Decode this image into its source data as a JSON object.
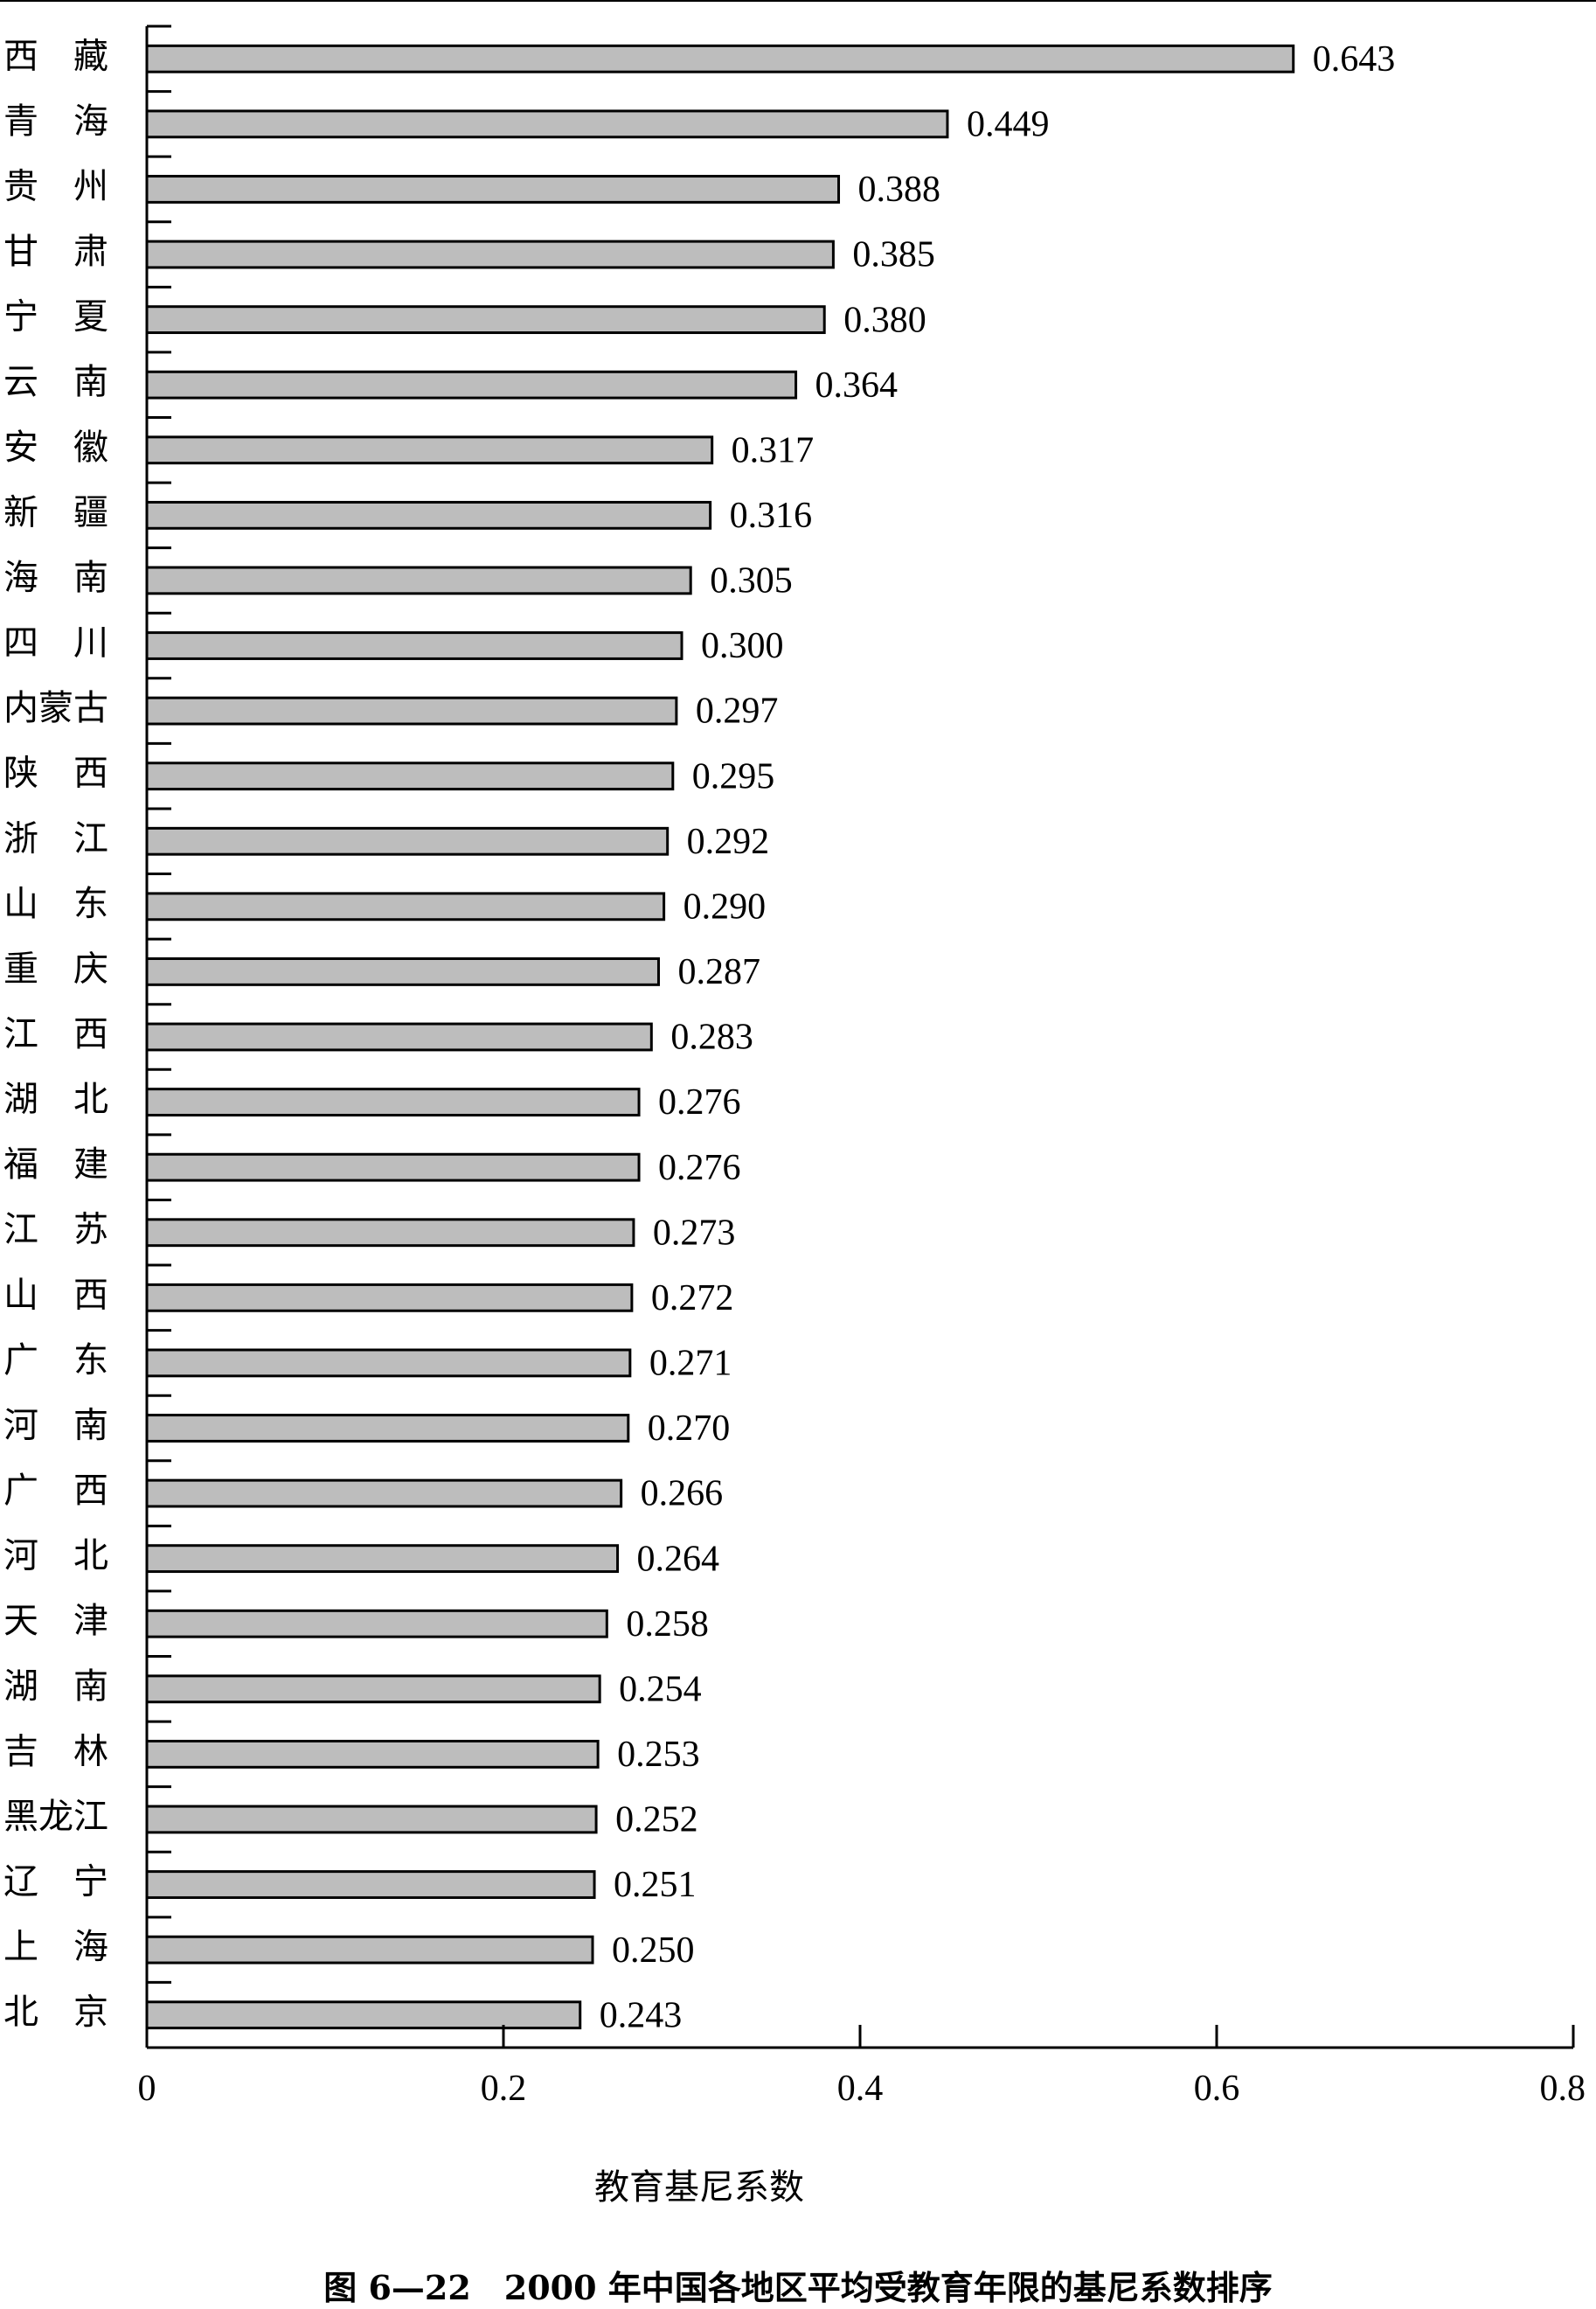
{
  "chart_data": {
    "type": "bar",
    "orientation": "horizontal",
    "categories": [
      "西　藏",
      "青　海",
      "贵　州",
      "甘　肃",
      "宁　夏",
      "云　南",
      "安　徽",
      "新　疆",
      "海　南",
      "四　川",
      "内蒙古",
      "陕　西",
      "浙　江",
      "山　东",
      "重　庆",
      "江　西",
      "湖　北",
      "福　建",
      "江　苏",
      "山　西",
      "广　东",
      "河　南",
      "广　西",
      "河　北",
      "天　津",
      "湖　南",
      "吉　林",
      "黑龙江",
      "辽　宁",
      "上　海",
      "北　京"
    ],
    "values": [
      0.643,
      0.449,
      0.388,
      0.385,
      0.38,
      0.364,
      0.317,
      0.316,
      0.305,
      0.3,
      0.297,
      0.295,
      0.292,
      0.29,
      0.287,
      0.283,
      0.276,
      0.276,
      0.273,
      0.272,
      0.271,
      0.27,
      0.266,
      0.264,
      0.258,
      0.254,
      0.253,
      0.252,
      0.251,
      0.25,
      0.243
    ],
    "value_labels": [
      "0.643",
      "0.449",
      "0.388",
      "0.385",
      "0.380",
      "0.364",
      "0.317",
      "0.316",
      "0.305",
      "0.300",
      "0.297",
      "0.295",
      "0.292",
      "0.290",
      "0.287",
      "0.283",
      "0.276",
      "0.276",
      "0.273",
      "0.272",
      "0.271",
      "0.270",
      "0.266",
      "0.264",
      "0.258",
      "0.254",
      "0.253",
      "0.252",
      "0.251",
      "0.250",
      "0.243"
    ],
    "xlabel": "教育基尼系数",
    "ylabel": "",
    "xlim": [
      0,
      0.8
    ],
    "x_ticks": [
      "0",
      "0.2",
      "0.4",
      "0.6",
      "0.8"
    ],
    "x_tick_values": [
      0,
      0.2,
      0.4,
      0.6,
      0.8
    ],
    "grid": false,
    "legend": "none",
    "bar_color": "#bdbdbd",
    "bar_edge_color": "#000000"
  },
  "caption": "图 6—22　2000 年中国各地区平均受教育年限的基尼系数排序"
}
